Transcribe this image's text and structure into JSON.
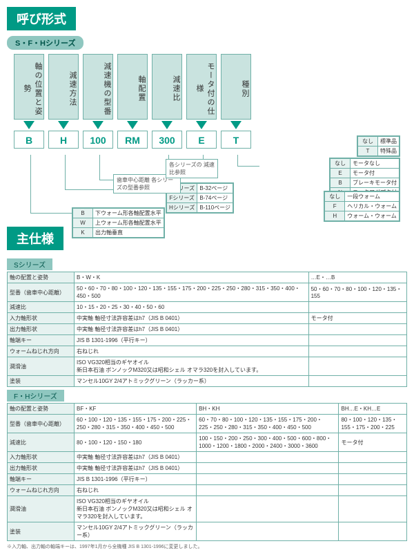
{
  "titles": {
    "naming": "呼び形式",
    "spec": "主仕様"
  },
  "series_pill": "S・F・Hシリーズ",
  "columns": [
    {
      "head": "軸の位置と姿勢",
      "code": "B"
    },
    {
      "head": "減速方法",
      "code": "H"
    },
    {
      "head": "減速機の型番",
      "code": "100"
    },
    {
      "head": "軸配置",
      "code": "RM"
    },
    {
      "head": "減速比",
      "code": "300"
    },
    {
      "head": "モータ付の仕様",
      "code": "E"
    },
    {
      "head": "種別",
      "code": "T"
    }
  ],
  "callouts": {
    "type_note": "歯車中心距離\n各シリーズの型番参照",
    "ratio_note": "各シリーズの\n減速比参照",
    "series_pages": [
      {
        "k": "Sシリーズ",
        "v": "B-32ページ"
      },
      {
        "k": "Fシリーズ",
        "v": "B-74ページ"
      },
      {
        "k": "Hシリーズ",
        "v": "B-110ページ"
      }
    ],
    "pos": [
      {
        "k": "B",
        "v": "下ウォーム形各軸配置水平"
      },
      {
        "k": "W",
        "v": "上ウォーム形各軸配置水平"
      },
      {
        "k": "K",
        "v": "出力軸垂直"
      }
    ],
    "motor": [
      {
        "k": "なし",
        "v": "モータなし"
      },
      {
        "k": "E",
        "v": "モータ付"
      },
      {
        "k": "B",
        "v": "ブレーキモータ付"
      },
      {
        "k": "N",
        "v": "モータアダプタ付"
      }
    ],
    "kind": [
      {
        "k": "なし",
        "v": "標準品"
      },
      {
        "k": "T",
        "v": "特殊品"
      }
    ],
    "reduce": [
      {
        "k": "なし",
        "v": "一段ウォーム"
      },
      {
        "k": "F",
        "v": "ヘリカル・ウォーム"
      },
      {
        "k": "H",
        "v": "ウォーム・ウォーム"
      }
    ]
  },
  "spec_s": {
    "label": "Sシリーズ",
    "rows": [
      {
        "h": "軸の配置と姿勢",
        "c1": "B・W・K",
        "c2": "…E・…B"
      },
      {
        "h": "型番（歯車中心距離）",
        "c1": "50・60・70・80・100・120・135・155・175・200・225・250・280・315・350・400・450・500",
        "c2": "50・60・70・80・100・120・135・155"
      },
      {
        "h": "減速比",
        "c1": "10・15・20・25・30・40・50・60",
        "c2": ""
      },
      {
        "h": "入力軸形状",
        "c1": "中実軸 軸径寸法許容差はh7（JIS B 0401）",
        "c2": "モータ付"
      },
      {
        "h": "出力軸形状",
        "c1": "中実軸 軸径寸法許容差はh7（JIS B 0401）",
        "c2": ""
      },
      {
        "h": "軸端キー",
        "c1": "JIS B 1301-1996（平行キー）",
        "c2": ""
      },
      {
        "h": "ウォームねじれ方向",
        "c1": "右ねじれ",
        "c2": ""
      },
      {
        "h": "潤滑油",
        "c1": "ISO VG320相当のギヤオイル\n新日本石油 ボンノックM320又は昭和シェル オマラ320を封入しています。",
        "c2": ""
      },
      {
        "h": "塗装",
        "c1": "マンセル10GY 2/4アトミックグリーン（ラッカー系）",
        "c2": ""
      }
    ]
  },
  "spec_fh": {
    "label": "F・Hシリーズ",
    "rows": [
      {
        "h": "軸の配置と姿勢",
        "c1": "BF・KF",
        "c2": "BH・KH",
        "c3": "BH…E・KH…E"
      },
      {
        "h": "型番（歯車中心距離）",
        "c1": "60・100・120・135・155・175・200・225・250・280・315・350・400・450・500",
        "c2": "60・70・80・100・120・135・155・175・200・225・250・280・315・350・400・450・500",
        "c3": "80・100・120・135・155・175・200・225"
      },
      {
        "h": "減速比",
        "c1": "80・100・120・150・180",
        "c2": "100・150・200・250・300・400・500・600・800・1000・1200・1800・2000・2400・3000・3600",
        "c3": "モータ付"
      },
      {
        "h": "入力軸形状",
        "c1": "中実軸 軸径寸法許容差はh7（JIS B 0401）",
        "c2": "",
        "c3": ""
      },
      {
        "h": "出力軸形状",
        "c1": "中実軸 軸径寸法許容差はh7（JIS B 0401）",
        "c2": "",
        "c3": ""
      },
      {
        "h": "軸端キー",
        "c1": "JIS B 1301-1996（平行キー）",
        "c2": "",
        "c3": ""
      },
      {
        "h": "ウォームねじれ方向",
        "c1": "右ねじれ",
        "c2": "",
        "c3": ""
      },
      {
        "h": "潤滑油",
        "c1": "ISO VG320相当のギヤオイル\n新日本石油 ボンノックM320又は昭和シェル オマラ320を封入しています。",
        "c2": "",
        "c3": ""
      },
      {
        "h": "塗装",
        "c1": "マンセル10GY 2/4アトミックグリーン（ラッカー系）",
        "c2": "",
        "c3": ""
      }
    ]
  },
  "footnote": "※入力軸、出力軸の軸端キーは、1997年1月から全機種 JIS B 1301-1996に変更しました。"
}
